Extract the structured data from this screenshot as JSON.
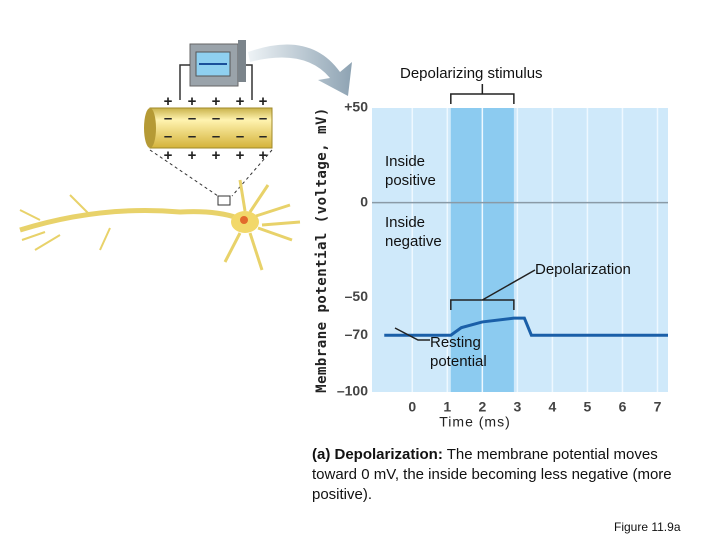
{
  "chart_data": {
    "type": "line",
    "ylabel": "Membrane potential (voltage, mV)",
    "xlabel": "Time (ms)",
    "x": [
      -0.8,
      1.1,
      1.4,
      2,
      2.9,
      3.2,
      3.4,
      7.3
    ],
    "series": [
      {
        "color": "#1a5fa8",
        "values": [
          -70,
          -70,
          -66,
          -63,
          -61,
          -61,
          -70,
          -70
        ]
      }
    ],
    "stimulus": [
      1.1,
      2.9
    ],
    "xlim": [
      -1.15,
      7.3
    ],
    "xticks": [
      0,
      1,
      2,
      3,
      4,
      5,
      6,
      7
    ],
    "ylim": [
      -100,
      50
    ],
    "yticks": [
      {
        "value": 50,
        "label": "+50"
      },
      0,
      {
        "value": -50,
        "label": "–50"
      },
      {
        "value": -70,
        "label": "–70"
      },
      {
        "value": -100,
        "label": "–100"
      }
    ],
    "grid": true,
    "annotations": {
      "stimulus": "Depolarizing stimulus",
      "inside_positive": "Inside positive",
      "inside_negative": "Inside negative",
      "depolarization": "Depolarization",
      "resting": "Resting potential"
    },
    "charges": {
      "outside": "+",
      "inside": "–"
    },
    "caption": {
      "lead": "(a) Depolarization:",
      "text": "The membrane potential moves toward 0 mV, the inside becoming less negative (more positive)."
    },
    "figure_label": "Figure 11.9a"
  }
}
